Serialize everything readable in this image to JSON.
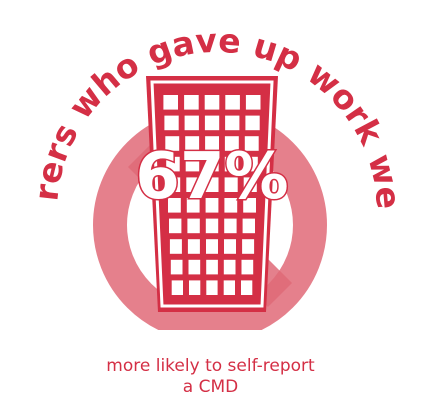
{
  "headline": "Carers who gave up work were",
  "statistic": "67%",
  "caption": {
    "line1": "more likely to self-report",
    "line2": "a CMD"
  },
  "icons": {
    "building": "office-building-icon",
    "prohibition": "no-entry-sign-icon"
  },
  "colors": {
    "primary_red": "#d42f45",
    "light_red": "#e8848f",
    "window_white": "#ffffff"
  }
}
